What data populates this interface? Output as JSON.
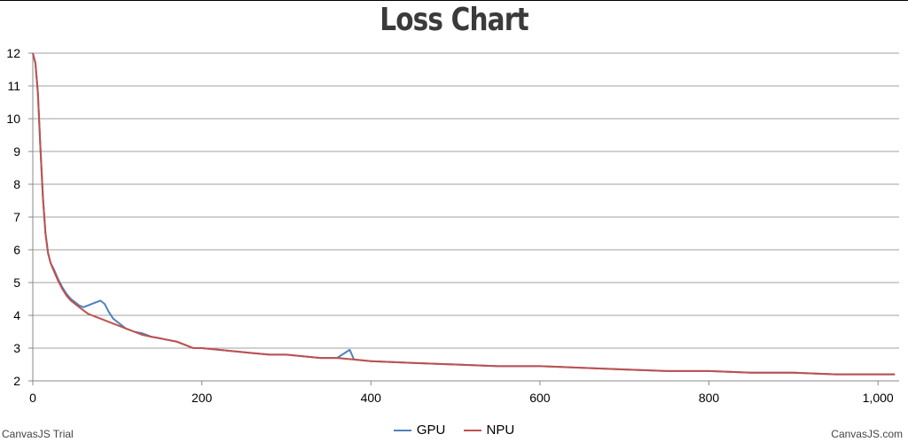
{
  "chart_data": {
    "type": "line",
    "title": "Loss Chart",
    "xlabel": "",
    "ylabel": "",
    "xlim": [
      0,
      1025
    ],
    "ylim": [
      2,
      12
    ],
    "x_ticks": [
      "0",
      "200",
      "400",
      "600",
      "800",
      "1,000"
    ],
    "x_tick_values": [
      0,
      200,
      400,
      600,
      800,
      1000
    ],
    "y_ticks": [
      "2",
      "3",
      "4",
      "5",
      "6",
      "7",
      "8",
      "9",
      "10",
      "11",
      "12"
    ],
    "y_tick_values": [
      2,
      3,
      4,
      5,
      6,
      7,
      8,
      9,
      10,
      11,
      12
    ],
    "grid": "horizontal",
    "legend_position": "bottom-center",
    "series": [
      {
        "name": "GPU",
        "color": "#4f81bc",
        "x": [
          0,
          3,
          6,
          9,
          12,
          15,
          18,
          21,
          25,
          30,
          35,
          40,
          45,
          50,
          55,
          60,
          65,
          70,
          75,
          80,
          85,
          90,
          95,
          100,
          110,
          120,
          130,
          140,
          150,
          160,
          170,
          180,
          190,
          200,
          220,
          240,
          260,
          280,
          300,
          320,
          340,
          360,
          375,
          380,
          400,
          450,
          500,
          550,
          600,
          650,
          700,
          750,
          800,
          850,
          900,
          950,
          1000,
          1020
        ],
        "y": [
          12.0,
          11.7,
          10.8,
          9.1,
          7.6,
          6.5,
          5.9,
          5.6,
          5.4,
          5.1,
          4.85,
          4.65,
          4.5,
          4.4,
          4.3,
          4.25,
          4.3,
          4.35,
          4.4,
          4.45,
          4.35,
          4.1,
          3.9,
          3.8,
          3.6,
          3.5,
          3.45,
          3.35,
          3.3,
          3.25,
          3.2,
          3.1,
          3.0,
          3.0,
          2.95,
          2.9,
          2.85,
          2.8,
          2.8,
          2.75,
          2.7,
          2.7,
          2.95,
          2.65,
          2.6,
          2.55,
          2.5,
          2.45,
          2.45,
          2.4,
          2.35,
          2.3,
          2.3,
          2.25,
          2.25,
          2.2,
          2.2,
          2.2
        ]
      },
      {
        "name": "NPU",
        "color": "#c0504e",
        "x": [
          0,
          3,
          6,
          9,
          12,
          15,
          18,
          21,
          25,
          30,
          35,
          40,
          45,
          50,
          55,
          60,
          65,
          70,
          75,
          80,
          85,
          90,
          95,
          100,
          110,
          120,
          130,
          140,
          150,
          160,
          170,
          180,
          190,
          200,
          220,
          240,
          260,
          280,
          300,
          320,
          340,
          360,
          380,
          400,
          450,
          500,
          550,
          600,
          650,
          700,
          750,
          800,
          850,
          900,
          950,
          1000,
          1020
        ],
        "y": [
          12.0,
          11.7,
          10.8,
          9.1,
          7.6,
          6.5,
          5.9,
          5.6,
          5.35,
          5.05,
          4.8,
          4.6,
          4.45,
          4.35,
          4.25,
          4.15,
          4.05,
          4.0,
          3.95,
          3.9,
          3.85,
          3.8,
          3.75,
          3.7,
          3.6,
          3.5,
          3.4,
          3.35,
          3.3,
          3.25,
          3.2,
          3.1,
          3.0,
          3.0,
          2.95,
          2.9,
          2.85,
          2.8,
          2.8,
          2.75,
          2.7,
          2.7,
          2.65,
          2.6,
          2.55,
          2.5,
          2.45,
          2.45,
          2.4,
          2.35,
          2.3,
          2.3,
          2.25,
          2.25,
          2.2,
          2.2,
          2.2
        ]
      }
    ]
  },
  "legend": {
    "gpu_label": "GPU",
    "npu_label": "NPU"
  },
  "credits": {
    "left": "CanvasJS Trial",
    "right": "CanvasJS.com"
  }
}
